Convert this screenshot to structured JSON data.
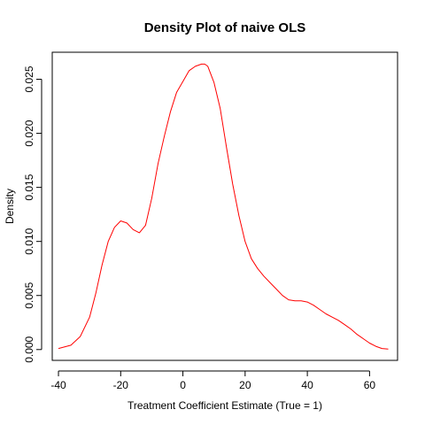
{
  "chart_data": {
    "type": "line",
    "title": "Density Plot of naive OLS",
    "xlabel": "Treatment Coefficient Estimate (True = 1)",
    "ylabel": "Density",
    "xlim": [
      -42,
      69
    ],
    "ylim": [
      -0.001,
      0.0275
    ],
    "x_ticks": [
      -40,
      -20,
      0,
      20,
      40,
      60
    ],
    "x_tick_labels": [
      "-40",
      "-20",
      "0",
      "20",
      "40",
      "60"
    ],
    "y_ticks": [
      0.0,
      0.005,
      0.01,
      0.015,
      0.02,
      0.025
    ],
    "y_tick_labels": [
      "0.000",
      "0.005",
      "0.010",
      "0.015",
      "0.020",
      "0.025"
    ],
    "grid": false,
    "box": true,
    "series": [
      {
        "color": "#ff0000",
        "x": [
          -40,
          -36,
          -33,
          -30,
          -28,
          -26,
          -24,
          -22,
          -20,
          -18,
          -16,
          -14,
          -12,
          -10,
          -8,
          -6,
          -4,
          -2,
          0,
          2,
          4,
          6,
          7,
          8,
          10,
          12,
          14,
          16,
          18,
          20,
          22,
          24,
          26,
          28,
          30,
          32,
          34,
          36,
          38,
          40,
          42,
          44,
          46,
          48,
          50,
          52,
          54,
          56,
          58,
          60,
          62,
          64,
          66
        ],
        "y": [
          0.0001,
          0.0004,
          0.0012,
          0.003,
          0.0052,
          0.0078,
          0.01,
          0.0113,
          0.0119,
          0.0117,
          0.0111,
          0.0108,
          0.0115,
          0.014,
          0.0172,
          0.0197,
          0.022,
          0.0238,
          0.0248,
          0.0258,
          0.0262,
          0.0264,
          0.0264,
          0.0262,
          0.0247,
          0.0223,
          0.0187,
          0.0153,
          0.0124,
          0.01,
          0.0084,
          0.0075,
          0.0068,
          0.0062,
          0.0056,
          0.005,
          0.0046,
          0.0045,
          0.0045,
          0.0044,
          0.0041,
          0.0037,
          0.0033,
          0.003,
          0.0027,
          0.0023,
          0.0019,
          0.0014,
          0.001,
          0.0006,
          0.0003,
          0.0001,
          4e-05
        ]
      }
    ]
  }
}
